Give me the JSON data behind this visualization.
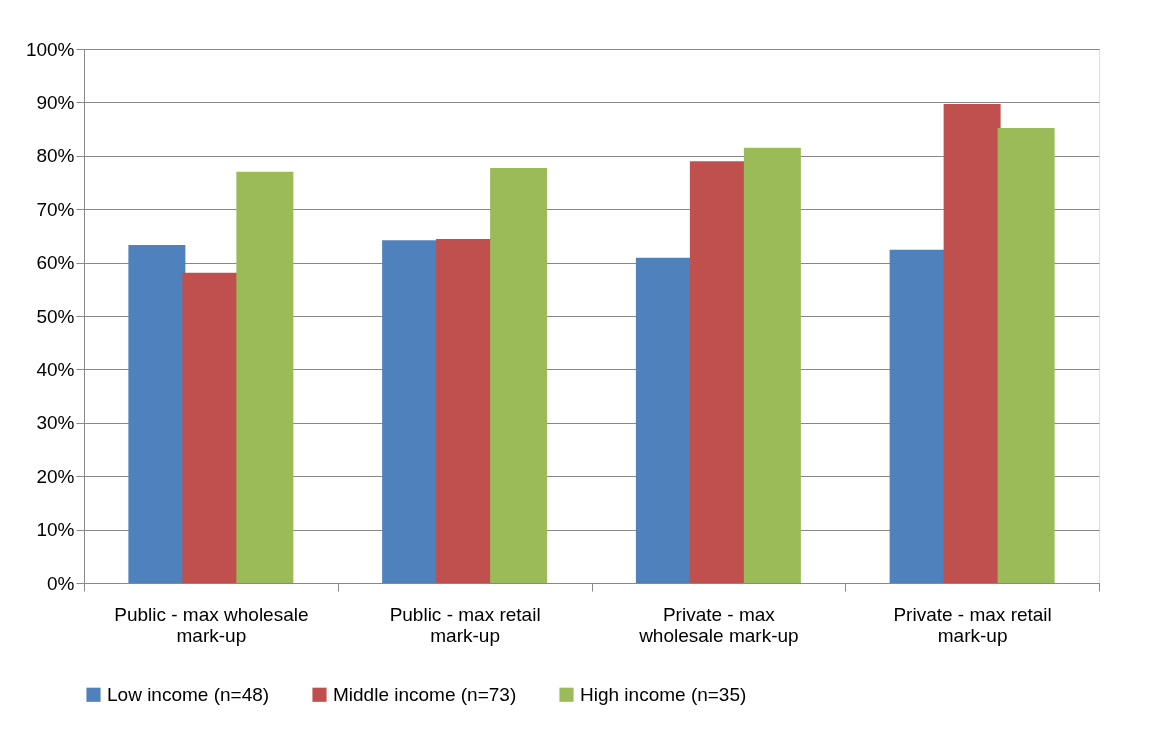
{
  "chart_data": {
    "type": "bar",
    "categories": [
      "Public - max wholesale mark-up",
      "Public - max retail mark-up",
      "Private - max wholesale mark-up",
      "Private - max retail mark-up"
    ],
    "series": [
      {
        "name": "Low income (n=48)",
        "color": "#4f81bd",
        "values": [
          63.3,
          64.2,
          60.9,
          62.4
        ]
      },
      {
        "name": "Middle income (n=73)",
        "color": "#c0504d",
        "values": [
          58.1,
          64.4,
          79.0,
          89.7
        ]
      },
      {
        "name": "High income (n=35)",
        "color": "#9bbb59",
        "values": [
          77.0,
          77.7,
          81.5,
          85.2
        ]
      }
    ],
    "ylim": [
      0,
      100
    ],
    "yticks": [
      {
        "value": 0,
        "label": "0%"
      },
      {
        "value": 10,
        "label": "10%"
      },
      {
        "value": 20,
        "label": "20%"
      },
      {
        "value": 30,
        "label": "30%"
      },
      {
        "value": 40,
        "label": "40%"
      },
      {
        "value": 50,
        "label": "50%"
      },
      {
        "value": 60,
        "label": "60%"
      },
      {
        "value": 70,
        "label": "70%"
      },
      {
        "value": 80,
        "label": "80%"
      },
      {
        "value": 90,
        "label": "90%"
      },
      {
        "value": 100,
        "label": "100%"
      }
    ],
    "grid": "y",
    "legend": "bottom"
  }
}
